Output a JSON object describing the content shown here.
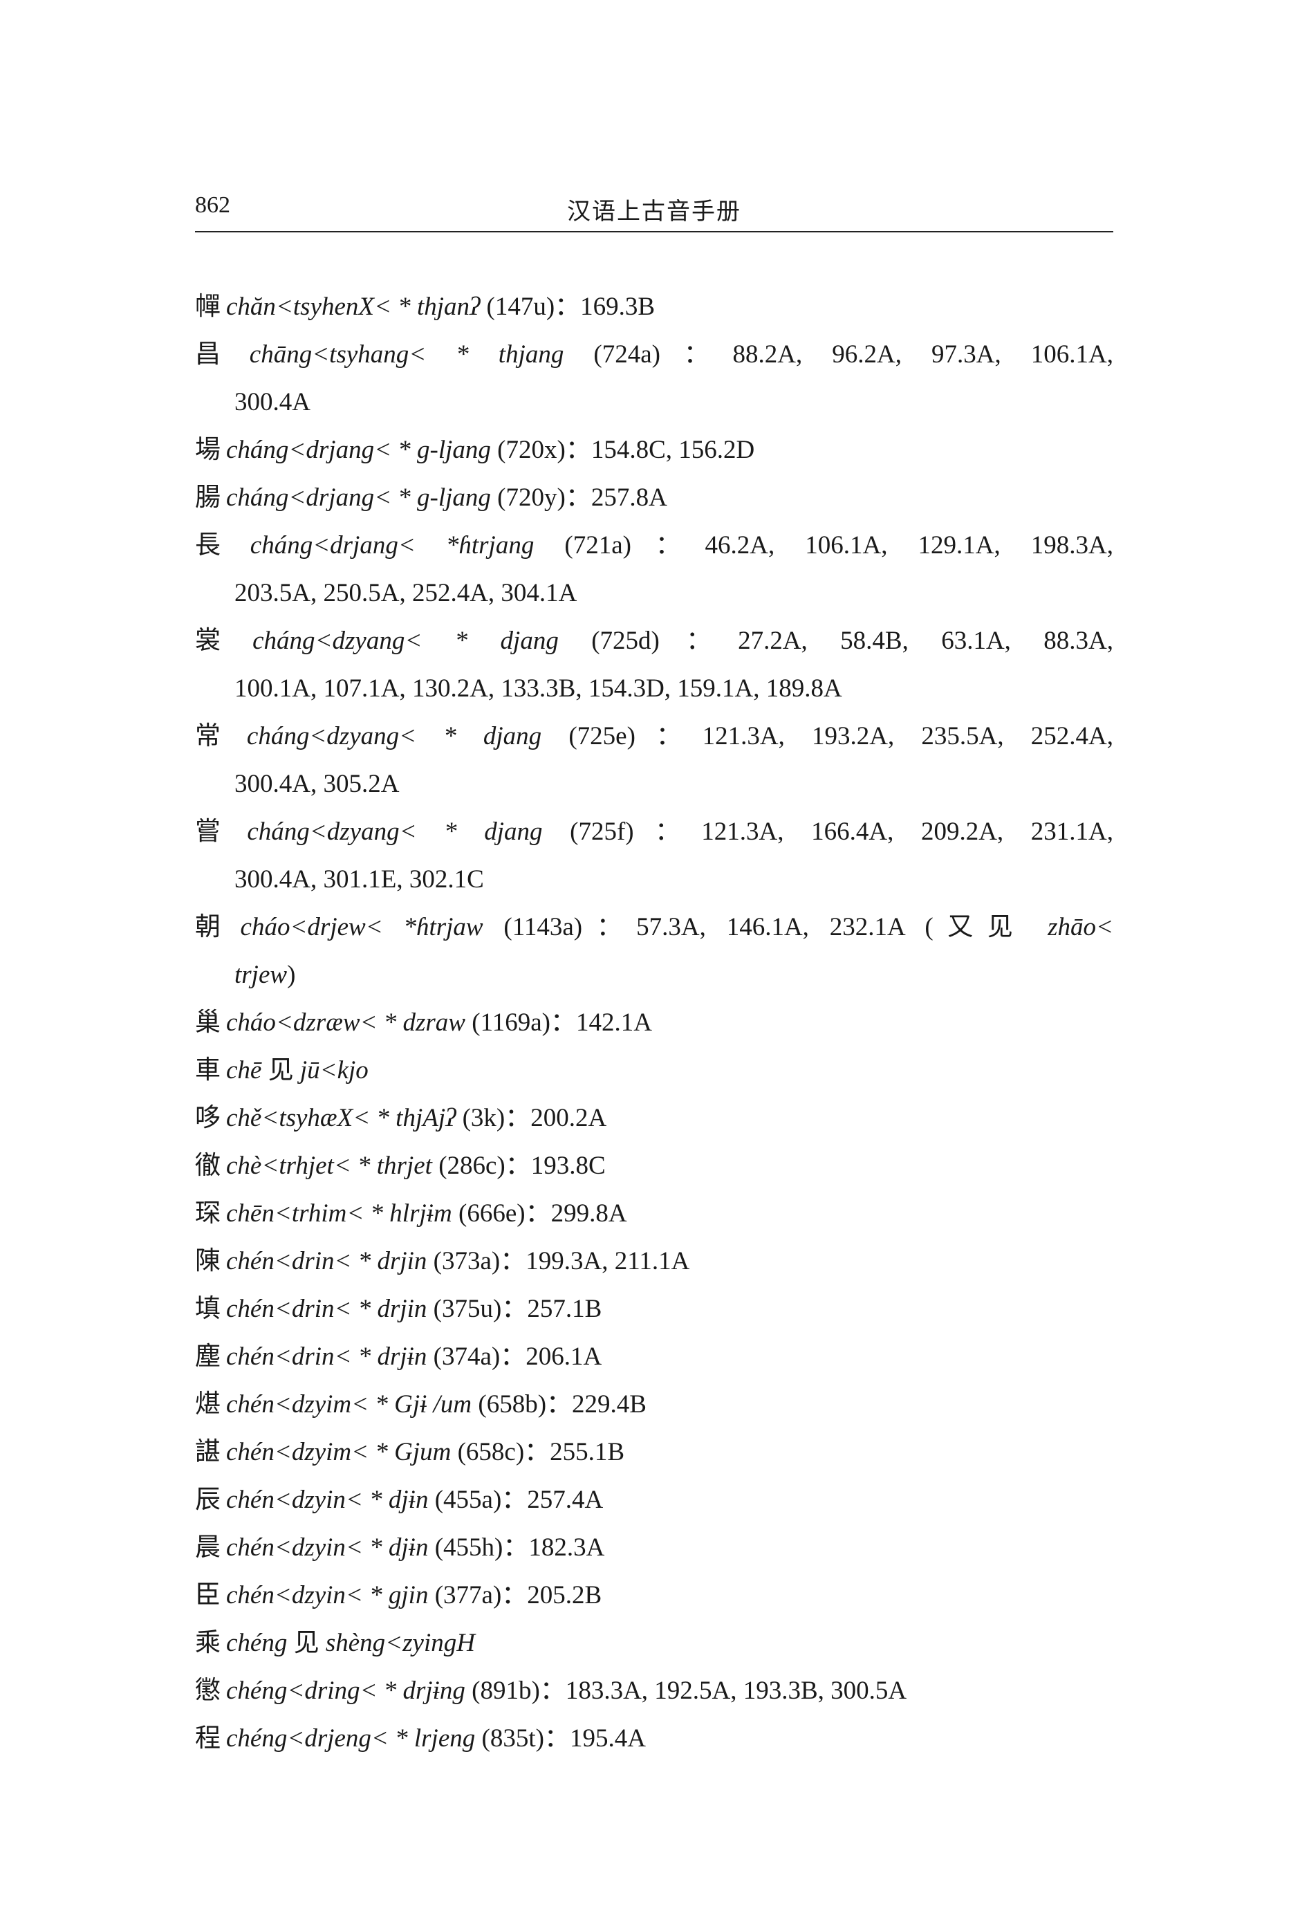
{
  "header": {
    "page_number": "862",
    "title": "汉语上古音手册"
  },
  "entries": [
    {
      "char": "幝",
      "form": "chăn<tsyhenX< * thjanʔ",
      "ref": " (147u)：169.3B"
    },
    {
      "char": "昌",
      "form": "chāng<tsyhang< * thjang",
      "ref": " (724a)：88.2A, 96.2A, 97.3A, 106.1A,",
      "cont": "300.4A"
    },
    {
      "char": "場",
      "form": "cháng<drjang< * g-ljang",
      "ref": " (720x)：154.8C, 156.2D"
    },
    {
      "char": "腸",
      "form": "cháng<drjang< * g-ljang",
      "ref": " (720y)：257.8A"
    },
    {
      "char": "長",
      "form": "cháng<drjang< *ɦtrjang",
      "ref": " (721a)：46.2A, 106.1A, 129.1A, 198.3A,",
      "cont": "203.5A, 250.5A, 252.4A, 304.1A"
    },
    {
      "char": "裳",
      "form": "cháng<dzyang< * djang",
      "ref": " (725d)：27.2A, 58.4B, 63.1A, 88.3A,",
      "cont": "100.1A, 107.1A, 130.2A, 133.3B, 154.3D, 159.1A, 189.8A"
    },
    {
      "char": "常",
      "form": "cháng<dzyang< * djang",
      "ref": " (725e)：121.3A, 193.2A, 235.5A, 252.4A,",
      "cont": "300.4A, 305.2A"
    },
    {
      "char": "嘗",
      "form": "cháng<dzyang< * djang",
      "ref": " (725f)：121.3A, 166.4A, 209.2A, 231.1A,",
      "cont": "300.4A, 301.1E, 302.1C"
    },
    {
      "char": "朝",
      "form": "cháo<drjew< *ɦtrjaw",
      "ref": " (1143a)：57.3A, 146.1A, 232.1A (又见 ",
      "ref_italic": "zhāo<",
      "cont_italic": "trjew",
      "cont": ")"
    },
    {
      "char": "巢",
      "form": "cháo<dzræw< * dzraw",
      "ref": " (1169a)：142.1A"
    },
    {
      "char": "車",
      "form": "chē",
      "ref": " 见 ",
      "ref_italic": "jū<kjo"
    },
    {
      "char": "哆",
      "form": "chě<tsyhæX< * thjAjʔ",
      "ref": " (3k)：200.2A"
    },
    {
      "char": "徹",
      "form": "chè<trhjet< * thrjet",
      "ref": " (286c)：193.8C"
    },
    {
      "char": "琛",
      "form": "chēn<trhim< * hlrjɨm",
      "ref": " (666e)：299.8A"
    },
    {
      "char": "陳",
      "form": "chén<drin< * drjin",
      "ref": " (373a)：199.3A, 211.1A"
    },
    {
      "char": "填",
      "form": "chén<drin< * drjin",
      "ref": " (375u)：257.1B"
    },
    {
      "char": "塵",
      "form": "chén<drin< * drjɨn",
      "ref": " (374a)：206.1A"
    },
    {
      "char": "煁",
      "form": "chén<dzyim< * Gjɨ /um",
      "ref": " (658b)：229.4B"
    },
    {
      "char": "諶",
      "form": "chén<dzyim< * Gjum",
      "ref": " (658c)：255.1B"
    },
    {
      "char": "辰",
      "form": "chén<dzyin< * djɨn",
      "ref": " (455a)：257.4A"
    },
    {
      "char": "晨",
      "form": "chén<dzyin< * djɨn",
      "ref": " (455h)：182.3A"
    },
    {
      "char": "臣",
      "form": "chén<dzyin< * gjin",
      "ref": " (377a)：205.2B"
    },
    {
      "char": "乘",
      "form": "chéng",
      "ref": " 见 ",
      "ref_italic": "shèng<zyingH"
    },
    {
      "char": "懲",
      "form": "chéng<dring< * drjɨng",
      "ref": " (891b)：183.3A, 192.5A, 193.3B, 300.5A"
    },
    {
      "char": "程",
      "form": "chéng<drjeng< * lrjeng",
      "ref": " (835t)：195.4A"
    }
  ]
}
